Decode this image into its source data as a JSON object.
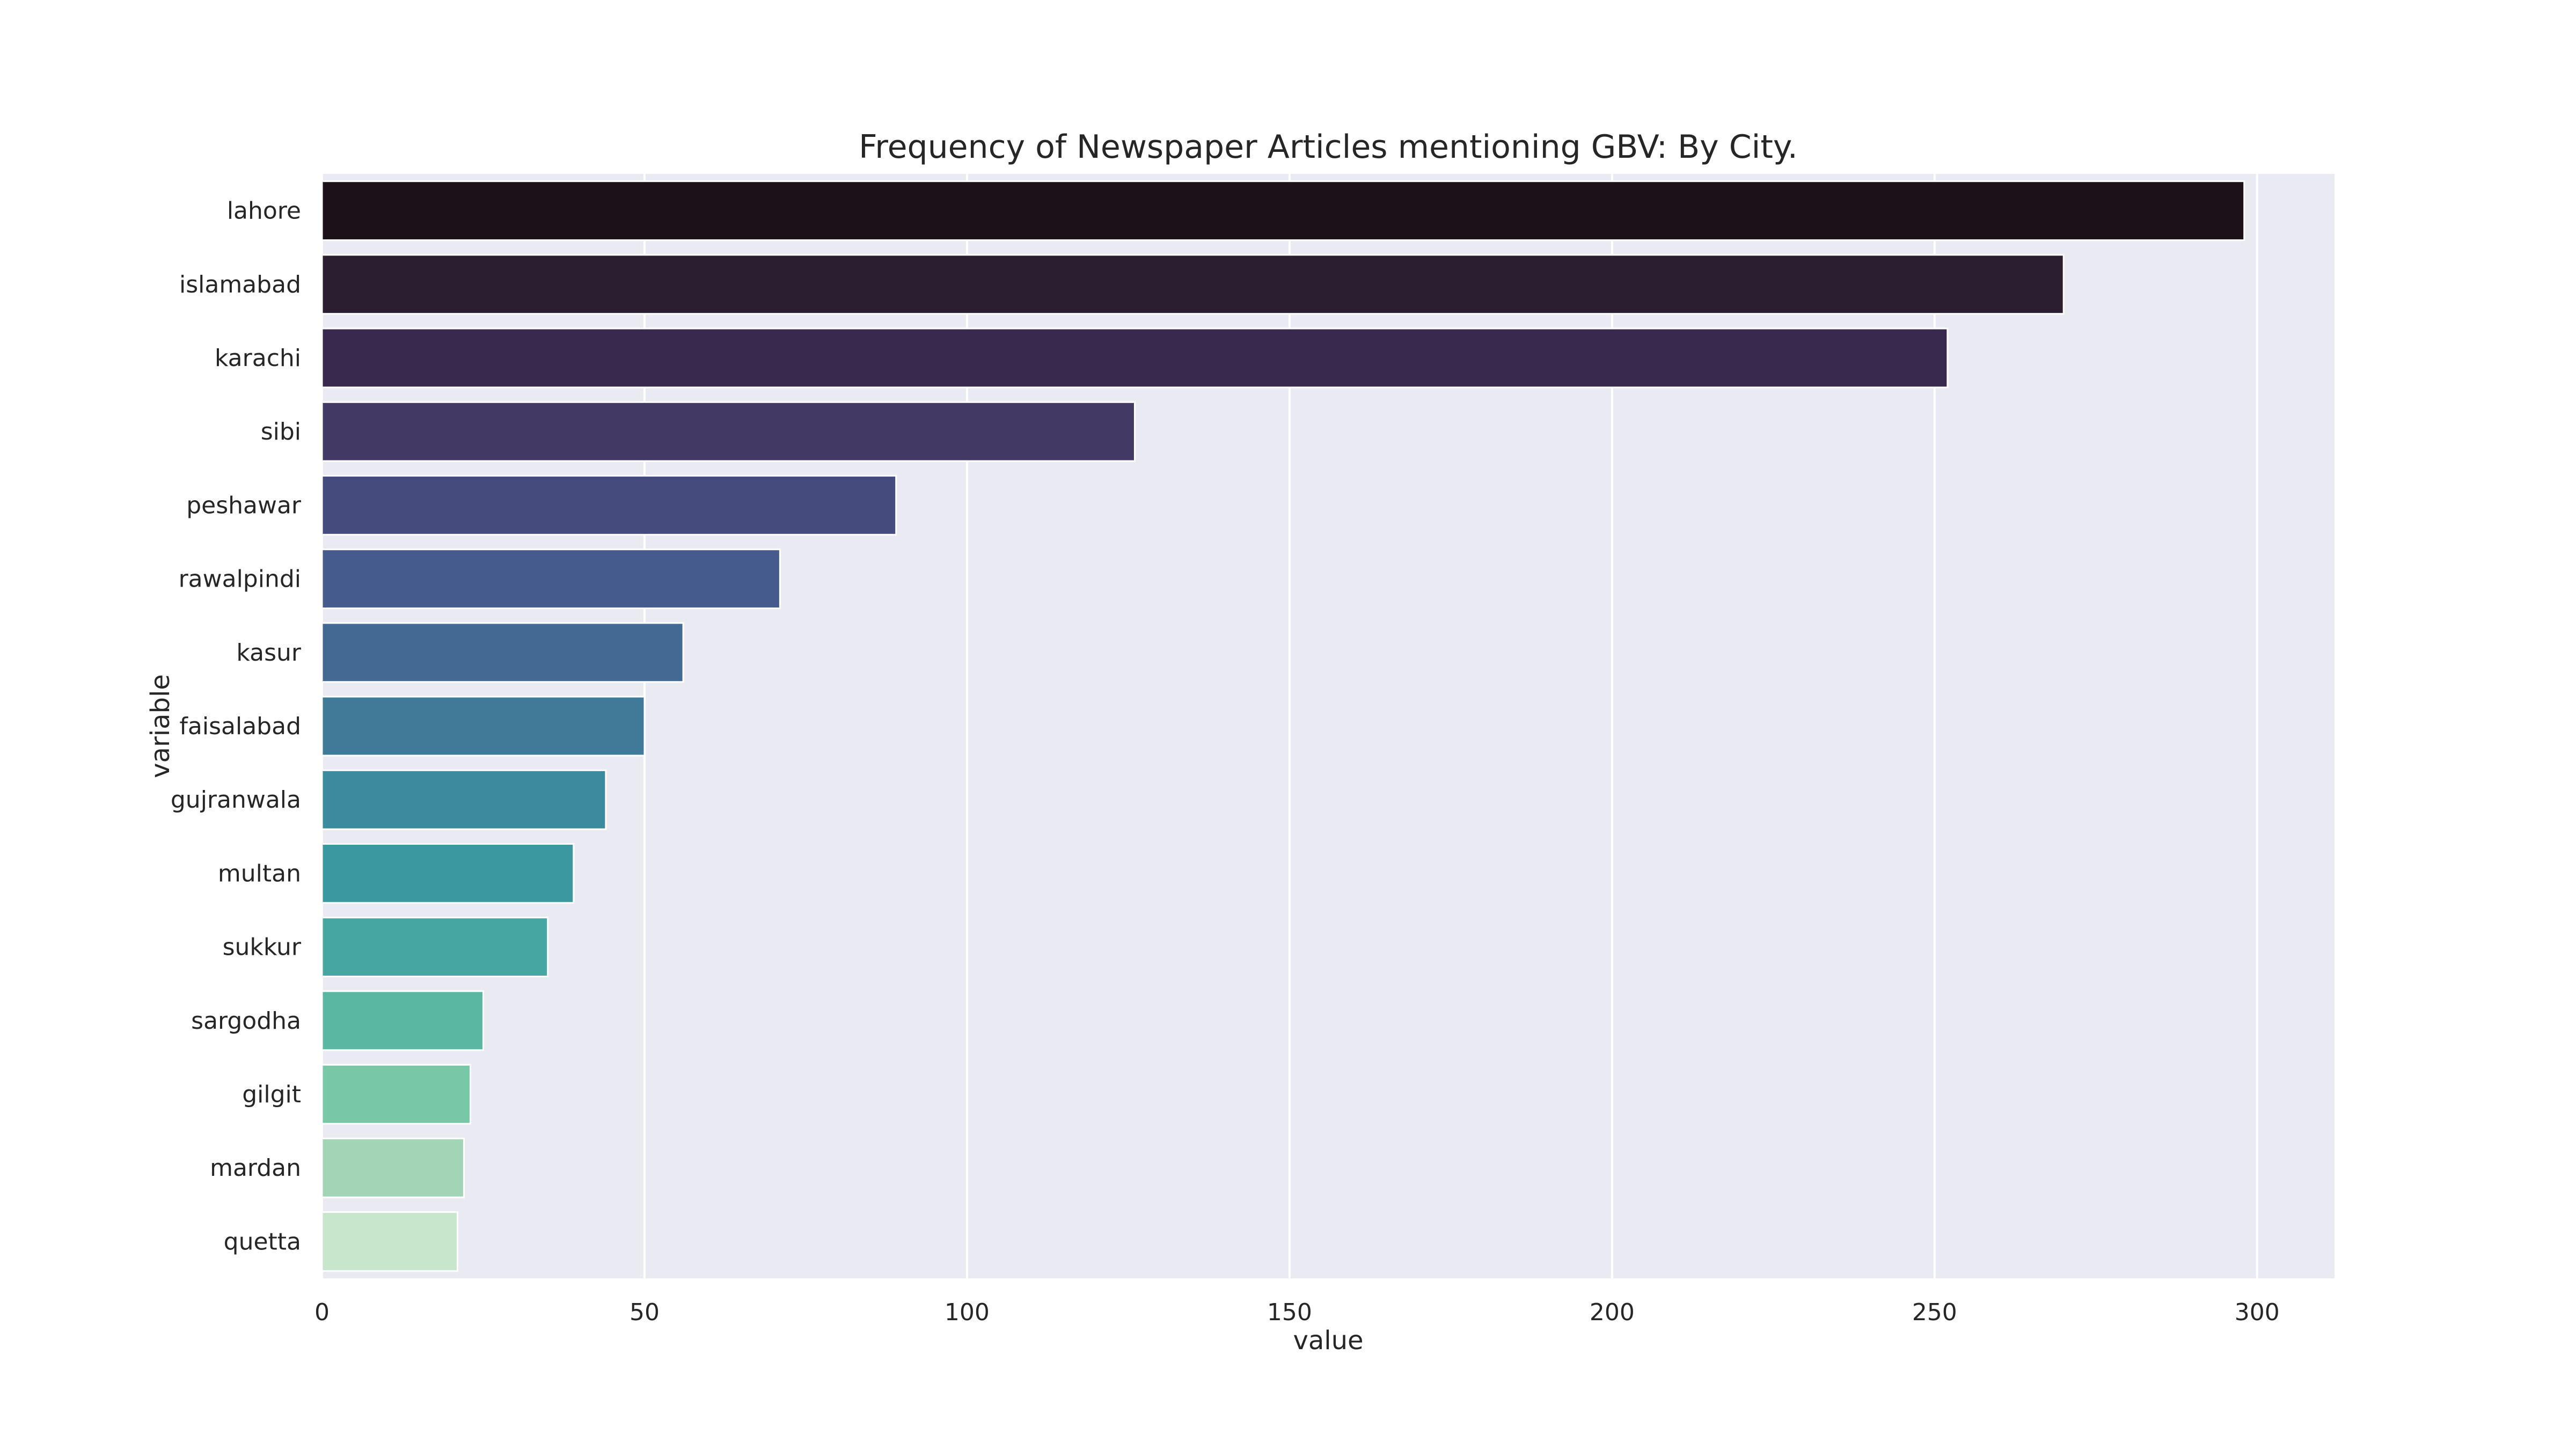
{
  "chart_data": {
    "type": "bar",
    "orientation": "horizontal",
    "title": "Frequency of Newspaper Articles mentioning GBV: By City.",
    "xlabel": "value",
    "ylabel": "variable",
    "xlim": [
      0,
      312
    ],
    "xticks": [
      0,
      50,
      100,
      150,
      200,
      250,
      300
    ],
    "grid": true,
    "categories": [
      "lahore",
      "islamabad",
      "karachi",
      "sibi",
      "peshawar",
      "rawalpindi",
      "kasur",
      "faisalabad",
      "gujranwala",
      "multan",
      "sukkur",
      "sargodha",
      "gilgit",
      "mardan",
      "quetta"
    ],
    "values": [
      298,
      270,
      252,
      126,
      89,
      71,
      56,
      50,
      44,
      39,
      35,
      25,
      23,
      22,
      21
    ],
    "colors": [
      "#1c1019",
      "#2c1e31",
      "#382a4f",
      "#433965",
      "#464b7e",
      "#465b8d",
      "#426a93",
      "#3f7a98",
      "#3c8a9d",
      "#3b98a1",
      "#45a6a2",
      "#5ab7a1",
      "#78c7a6",
      "#a2d5b5",
      "#c7e6cc"
    ],
    "plot_background": "#eaeaf2",
    "grid_color": "#ffffff"
  }
}
